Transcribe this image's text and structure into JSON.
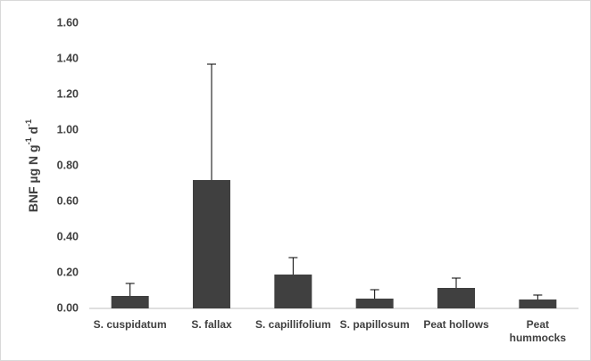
{
  "chart_data": {
    "type": "bar",
    "y_label_parts": [
      "BNF µg N g",
      "-1",
      " d",
      "-1"
    ],
    "categories": [
      "S. cuspidatum",
      "S. fallax",
      "S. capillifolium",
      "S. papillosum",
      "Peat hollows",
      "Peat hummocks"
    ],
    "values": [
      0.07,
      0.72,
      0.19,
      0.055,
      0.115,
      0.05
    ],
    "errors": [
      0.07,
      0.65,
      0.095,
      0.05,
      0.055,
      0.025
    ],
    "color": "#404040",
    "ylim": [
      0,
      1.6
    ],
    "yticks": [
      {
        "value": 0,
        "label": "0.00"
      },
      {
        "value": 0.2,
        "label": "0.20"
      },
      {
        "value": 0.4,
        "label": "0.40"
      },
      {
        "value": 0.6,
        "label": "0.60"
      },
      {
        "value": 0.8,
        "label": "0.80"
      },
      {
        "value": 1.0,
        "label": "1.00"
      },
      {
        "value": 1.2,
        "label": "1.20"
      },
      {
        "value": 1.4,
        "label": "1.40"
      },
      {
        "value": 1.6,
        "label": "1.60"
      }
    ],
    "grid": false
  }
}
